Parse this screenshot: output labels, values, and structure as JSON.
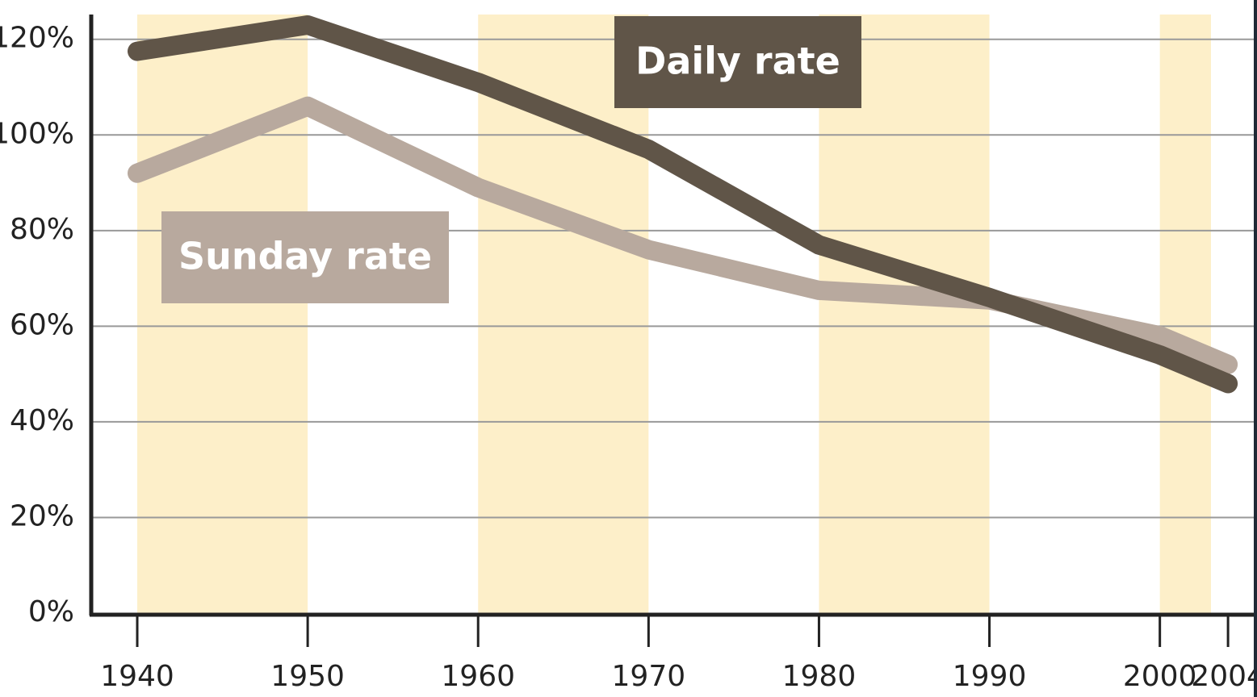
{
  "chart_data": {
    "type": "line",
    "x": [
      1940,
      1950,
      1960,
      1970,
      1980,
      1990,
      2000,
      2004
    ],
    "series": [
      {
        "name": "Daily rate",
        "color": "#605548",
        "values": [
          117.5,
          123,
          111,
          97,
          77,
          66,
          54,
          48
        ]
      },
      {
        "name": "Sunday rate",
        "color": "#b8a99e",
        "values": [
          92,
          106,
          89,
          76,
          67.5,
          65.5,
          58,
          52
        ]
      }
    ],
    "xlim": [
      1937.3,
      2005.7
    ],
    "xticks": [
      1940,
      1950,
      1960,
      1970,
      1980,
      1990,
      2000,
      2004
    ],
    "ylim": [
      0,
      123.5
    ],
    "yticks": [
      {
        "value": 0,
        "label": "0%"
      },
      {
        "value": 20,
        "label": "20%"
      },
      {
        "value": 40,
        "label": "40%"
      },
      {
        "value": 60,
        "label": "60%"
      },
      {
        "value": 80,
        "label": "80%"
      },
      {
        "value": 100,
        "label": "100%"
      },
      {
        "value": 120,
        "label": "120%"
      }
    ],
    "bands": [
      [
        1940,
        1950
      ],
      [
        1960,
        1970
      ],
      [
        1980,
        1990
      ],
      [
        2000,
        2003
      ]
    ],
    "band_color": "#fdefc9",
    "grid": true
  }
}
